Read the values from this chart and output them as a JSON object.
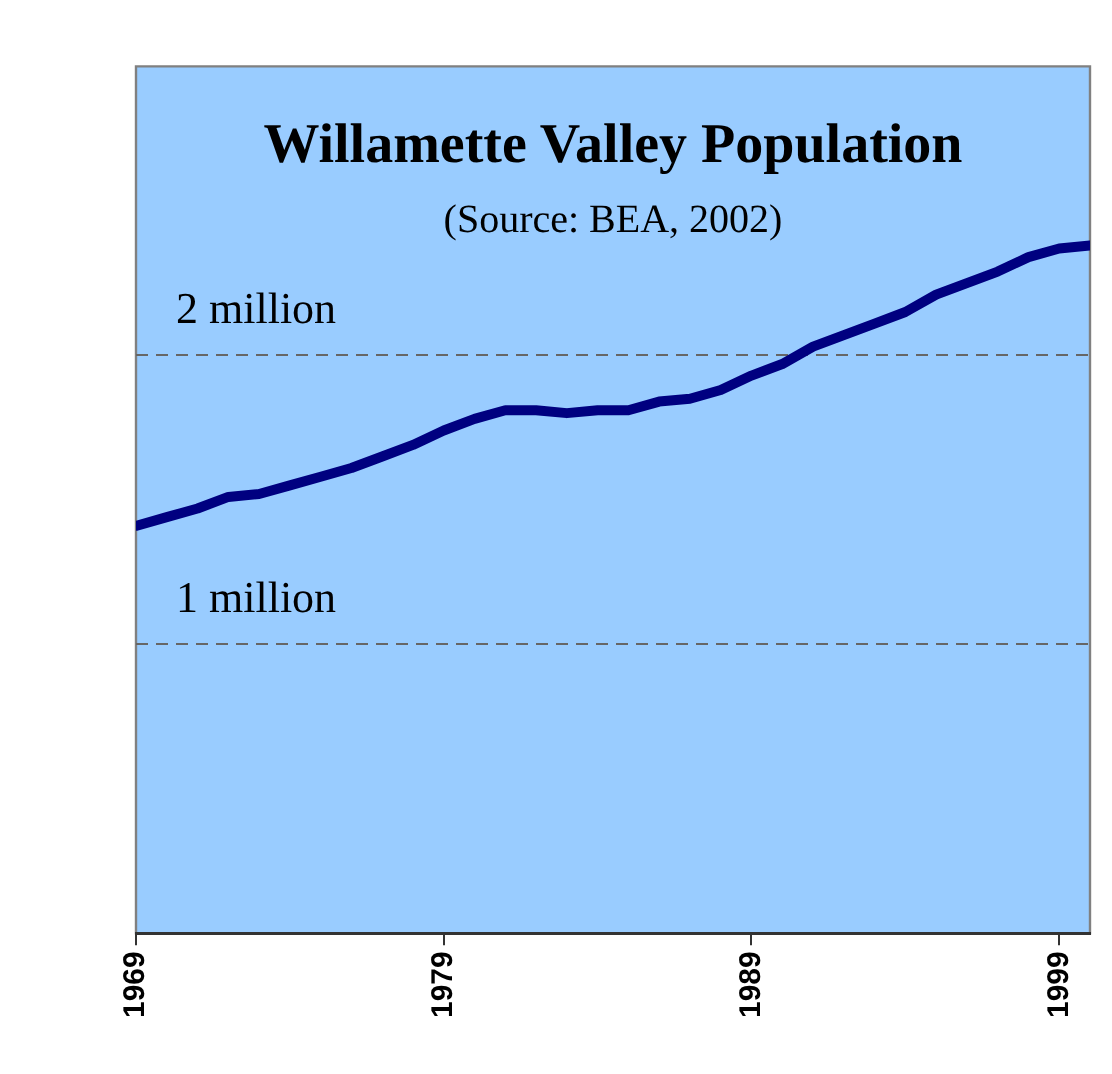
{
  "chart_data": {
    "type": "line",
    "title": "Willamette Valley Population",
    "subtitle": "(Source: BEA, 2002)",
    "x": [
      1969,
      1970,
      1971,
      1972,
      1973,
      1974,
      1975,
      1976,
      1977,
      1978,
      1979,
      1980,
      1981,
      1982,
      1983,
      1984,
      1985,
      1986,
      1987,
      1988,
      1989,
      1990,
      1991,
      1992,
      1993,
      1994,
      1995,
      1996,
      1997,
      1998,
      1999,
      2000
    ],
    "series": [
      {
        "color": "#000080",
        "values": [
          1.41,
          1.44,
          1.47,
          1.51,
          1.52,
          1.55,
          1.58,
          1.61,
          1.65,
          1.69,
          1.74,
          1.78,
          1.81,
          1.81,
          1.8,
          1.81,
          1.81,
          1.84,
          1.85,
          1.88,
          1.93,
          1.97,
          2.03,
          2.07,
          2.11,
          2.15,
          2.21,
          2.25,
          2.29,
          2.34,
          2.37,
          2.38
        ]
      }
    ],
    "xlim": [
      1969,
      2000
    ],
    "xticks": [
      1969,
      1979,
      1989,
      1999
    ],
    "ylim": [
      0,
      3
    ],
    "yticks": [
      {
        "value": 1,
        "label": "1 million"
      },
      {
        "value": 2,
        "label": "2 million"
      }
    ],
    "grid": "y",
    "legend": false,
    "marker": "none",
    "line_style": "solid"
  }
}
